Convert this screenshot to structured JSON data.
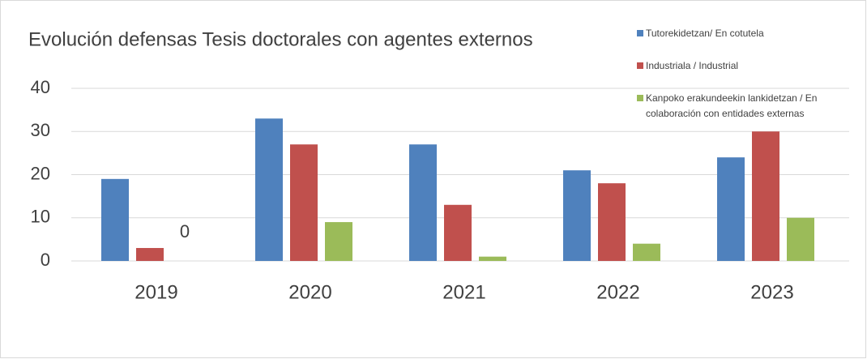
{
  "chart_data": {
    "type": "bar",
    "title": "Evolución defensas Tesis doctorales con agentes externos",
    "categories": [
      "2019",
      "2020",
      "2021",
      "2022",
      "2023"
    ],
    "series": [
      {
        "name": "Tutorekidetzan/ En cotutela",
        "color": "#4f81bd",
        "values": [
          19,
          33,
          27,
          21,
          24
        ]
      },
      {
        "name": "Industriala / Industrial",
        "color": "#c0504d",
        "values": [
          3,
          27,
          13,
          18,
          30
        ]
      },
      {
        "name": "Kanpoko erakundeekin lankidetzan / En colaboración con entidades externas",
        "color": "#9bbb59",
        "values": [
          0,
          9,
          1,
          4,
          10
        ]
      }
    ],
    "ylim": [
      0,
      40
    ],
    "yticks": [
      0,
      10,
      20,
      30,
      40
    ],
    "grid": true,
    "legend": "top-right"
  }
}
